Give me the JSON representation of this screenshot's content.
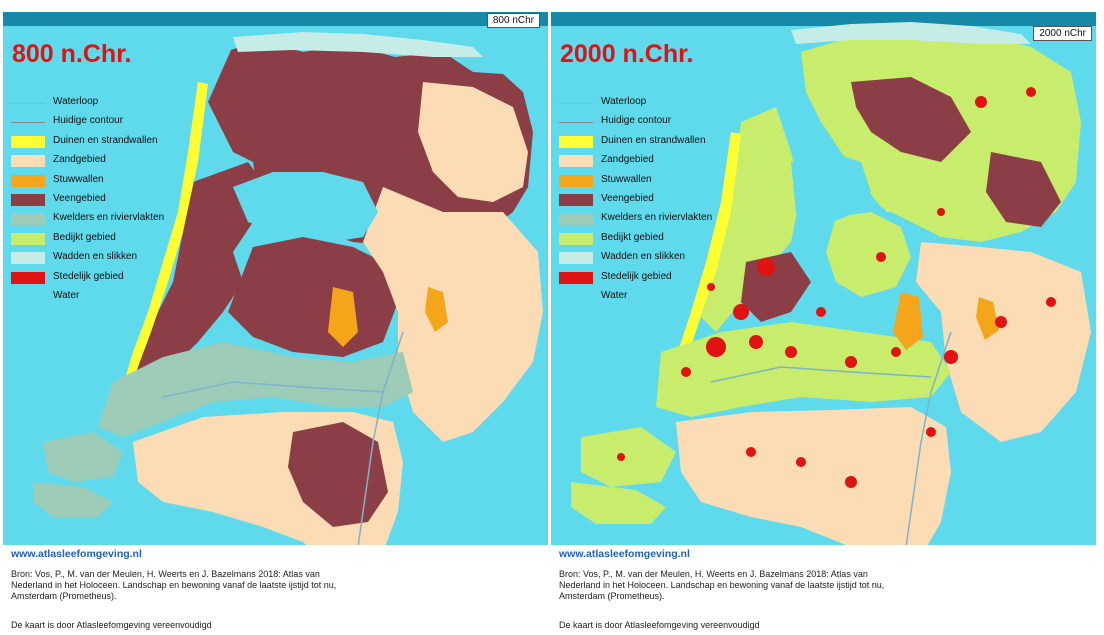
{
  "panels": [
    {
      "title": "800 n.Chr.",
      "period_tag": "800 nChr",
      "legend": [
        {
          "label": "Waterloop",
          "kind": "line-water",
          "color": "#7fb3c8"
        },
        {
          "label": "Huidige contour",
          "kind": "line",
          "color": "#888888"
        },
        {
          "label": "Duinen en strandwallen",
          "kind": "fill",
          "color": "#ffff33"
        },
        {
          "label": "Zandgebied",
          "kind": "fill",
          "color": "#fbdcb4"
        },
        {
          "label": "Stuwwallen",
          "kind": "fill",
          "color": "#f5a51a"
        },
        {
          "label": "Veengebied",
          "kind": "fill",
          "color": "#8c3e46"
        },
        {
          "label": "Kwelders en riviervlakten",
          "kind": "fill",
          "color": "#9ccbb8"
        },
        {
          "label": "Bedijkt gebied",
          "kind": "fill",
          "color": "#c8ec6c"
        },
        {
          "label": "Wadden en slikken",
          "kind": "fill",
          "color": "#c6ece8"
        },
        {
          "label": "Stedelijk gebied",
          "kind": "fill",
          "color": "#e01212"
        },
        {
          "label": "Water",
          "kind": "fill",
          "color": "#5fd9ec"
        }
      ],
      "site_url": "www.atlasleefomgeving.nl",
      "source": "Bron: Vos, P., M. van der Meulen, H. Weerts en J. Bazelmans 2018: Atlas van Nederland in het Holoceen. Landschap en bewoning vanaf de laatste ijstijd tot nu, Amsterdam (Prometheus).",
      "simplified_note": "De kaart is door Atlasleefomgeving vereenvoudigd"
    },
    {
      "title": "2000 n.Chr.",
      "period_tag": "2000 nChr",
      "legend": [
        {
          "label": "Waterloop",
          "kind": "line-water",
          "color": "#7fb3c8"
        },
        {
          "label": "Huidige contour",
          "kind": "line",
          "color": "#888888"
        },
        {
          "label": "Duinen en strandwallen",
          "kind": "fill",
          "color": "#ffff33"
        },
        {
          "label": "Zandgebied",
          "kind": "fill",
          "color": "#fbdcb4"
        },
        {
          "label": "Stuwwallen",
          "kind": "fill",
          "color": "#f5a51a"
        },
        {
          "label": "Veengebied",
          "kind": "fill",
          "color": "#8c3e46"
        },
        {
          "label": "Kwelders en riviervlakten",
          "kind": "fill",
          "color": "#9ccbb8"
        },
        {
          "label": "Bedijkt gebied",
          "kind": "fill",
          "color": "#c8ec6c"
        },
        {
          "label": "Wadden en slikken",
          "kind": "fill",
          "color": "#c6ece8"
        },
        {
          "label": "Stedelijk gebied",
          "kind": "fill",
          "color": "#e01212"
        },
        {
          "label": "Water",
          "kind": "fill",
          "color": "#5fd9ec"
        }
      ],
      "site_url": "www.atlasleefomgeving.nl",
      "source": "Bron: Vos, P., M. van der Meulen, H. Weerts en J. Bazelmans 2018: Atlas van Nederland in het Holoceen. Landschap en bewoning vanaf de laatste ijstijd tot nu, Amsterdam (Prometheus).",
      "simplified_note": "De kaart is door Atlasleefomgeving vereenvoudigd"
    }
  ],
  "colors": {
    "water": "#5fd9ec",
    "header_bar": "#1688a8",
    "title_red": "#e01212",
    "url_blue": "#2060c0"
  }
}
